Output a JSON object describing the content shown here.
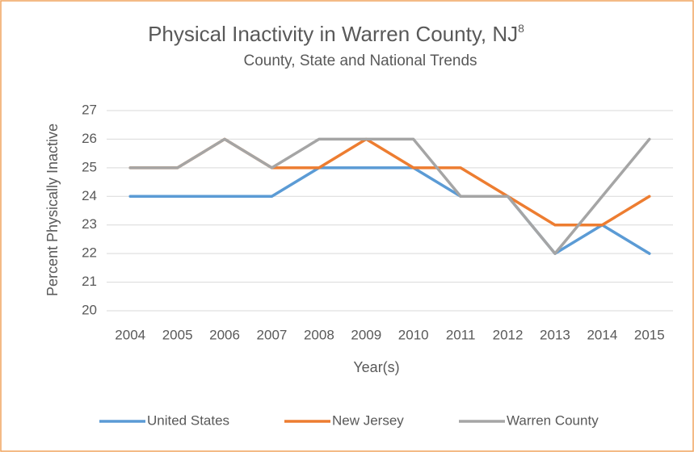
{
  "chart_data": {
    "type": "line",
    "title": "Physical Inactivity in Warren County, NJ",
    "title_note": "8",
    "subtitle": "County, State and National Trends",
    "x_label": "Year(s)",
    "y_label": "Percent Physically Inactive",
    "categories": [
      "2004",
      "2005",
      "2006",
      "2007",
      "2008",
      "2009",
      "2010",
      "2011",
      "2012",
      "2013",
      "2014",
      "2015"
    ],
    "series": [
      {
        "name": "United States",
        "color": "#5b9bd5",
        "values": [
          24,
          24,
          24,
          24,
          25,
          25,
          25,
          24,
          24,
          22,
          23,
          22
        ]
      },
      {
        "name": "New Jersey",
        "color": "#ed7d31",
        "values": [
          25,
          25,
          26,
          25,
          25,
          26,
          25,
          25,
          24,
          23,
          23,
          24
        ]
      },
      {
        "name": "Warren County",
        "color": "#a5a5a5",
        "values": [
          25,
          25,
          26,
          25,
          26,
          26,
          26,
          24,
          24,
          22,
          24,
          26
        ]
      }
    ],
    "ylim": [
      20,
      27
    ],
    "yticks": [
      20,
      21,
      22,
      23,
      24,
      25,
      26,
      27
    ],
    "grid": true,
    "legend": "bottom"
  }
}
